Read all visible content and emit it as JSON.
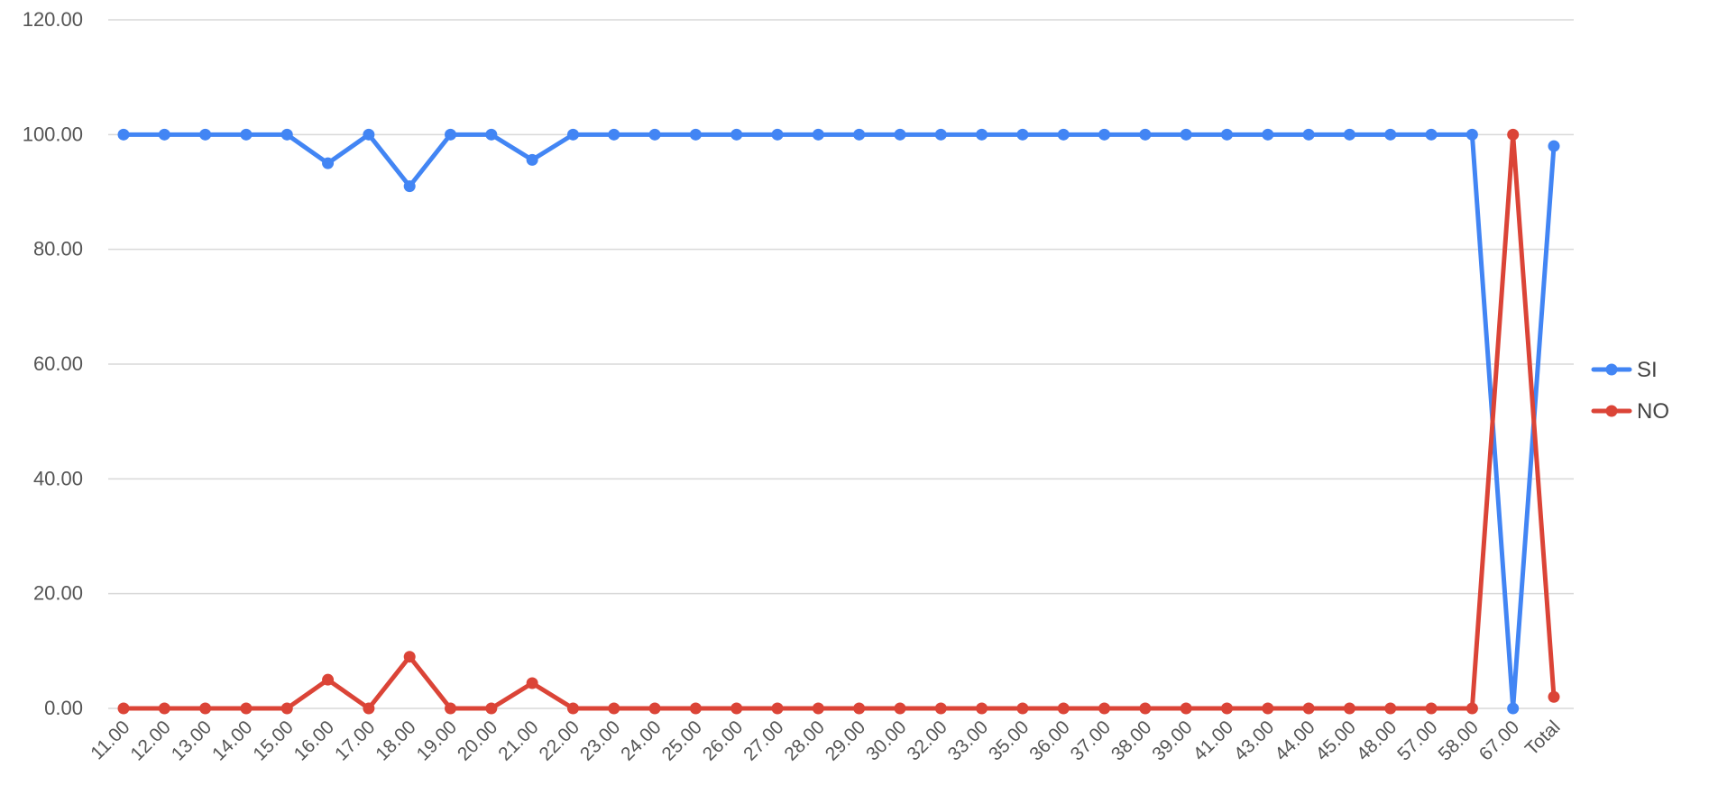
{
  "chart_data": {
    "type": "line",
    "categories": [
      "11.00",
      "12.00",
      "13.00",
      "14.00",
      "15.00",
      "16.00",
      "17.00",
      "18.00",
      "19.00",
      "20.00",
      "21.00",
      "22.00",
      "23.00",
      "24.00",
      "25.00",
      "26.00",
      "27.00",
      "28.00",
      "29.00",
      "30.00",
      "32.00",
      "33.00",
      "35.00",
      "36.00",
      "37.00",
      "38.00",
      "39.00",
      "41.00",
      "43.00",
      "44.00",
      "45.00",
      "48.00",
      "57.00",
      "58.00",
      "67.00",
      "Total"
    ],
    "series": [
      {
        "name": "SI",
        "color": "#4285f4",
        "values": [
          100,
          100,
          100,
          100,
          100,
          95,
          100,
          91,
          100,
          100,
          95.6,
          100,
          100,
          100,
          100,
          100,
          100,
          100,
          100,
          100,
          100,
          100,
          100,
          100,
          100,
          100,
          100,
          100,
          100,
          100,
          100,
          100,
          100,
          100,
          0,
          98
        ]
      },
      {
        "name": "NO",
        "color": "#db4437",
        "values": [
          0,
          0,
          0,
          0,
          0,
          5,
          0,
          9,
          0,
          0,
          4.4,
          0,
          0,
          0,
          0,
          0,
          0,
          0,
          0,
          0,
          0,
          0,
          0,
          0,
          0,
          0,
          0,
          0,
          0,
          0,
          0,
          0,
          0,
          0,
          100,
          2
        ]
      }
    ],
    "yticks": [
      "0.00",
      "20.00",
      "40.00",
      "60.00",
      "80.00",
      "100.00",
      "120.00"
    ],
    "ylim": [
      0,
      120
    ],
    "grid": true,
    "legend_position": "right"
  }
}
